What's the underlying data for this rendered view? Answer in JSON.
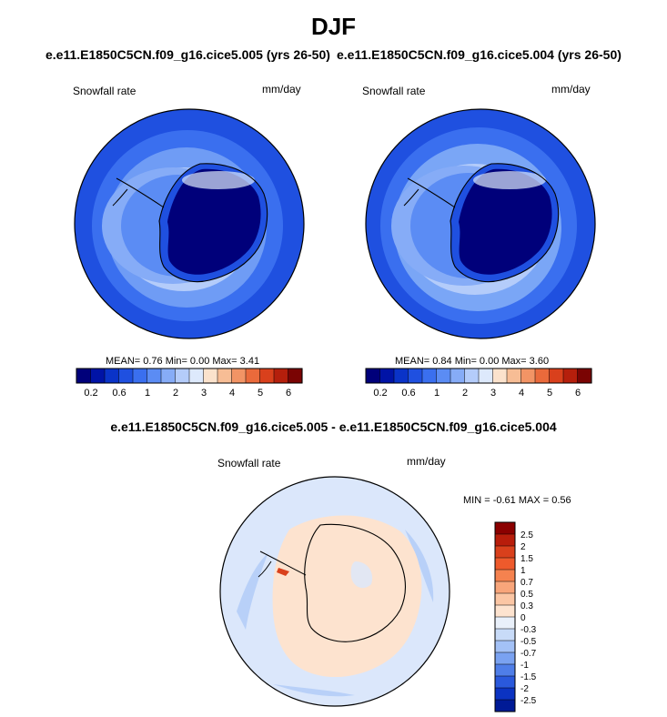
{
  "page": {
    "title": "DJF",
    "left_case_title": "e.e11.E1850C5CN.f09_g16.cice5.005 (yrs 26-50)",
    "right_case_title": "e.e11.E1850C5CN.f09_g16.cice5.004 (yrs 26-50)",
    "diff_title": "e.e11.E1850C5CN.f09_g16.cice5.005 - e.e11.E1850C5CN.f09_g16.cice5.004"
  },
  "panels": {
    "left": {
      "variable": "Snowfall rate",
      "units": "mm/day",
      "stats": "MEAN=   0.76  Min=   0.00  Max=   3.41"
    },
    "right": {
      "variable": "Snowfall rate",
      "units": "mm/day",
      "stats": "MEAN=   0.84  Min=   0.00  Max=   3.60"
    },
    "diff": {
      "variable": "Snowfall rate",
      "units": "mm/day",
      "stats": "MIN =  -0.61 MAX =   0.56"
    }
  },
  "chart_data": [
    {
      "type": "heatmap",
      "projection": "south-polar stereographic",
      "title": "e.e11.E1850C5CN.f09_g16.cice5.005 (yrs 26-50)",
      "variable": "Snowfall rate",
      "units": "mm/day",
      "mean": 0.76,
      "min": 0.0,
      "max": 3.41,
      "colorbar_levels": [
        0.2,
        0.4,
        0.6,
        0.8,
        1,
        1.5,
        2,
        2.5,
        3,
        3.5,
        4,
        4.5,
        5,
        5.5,
        6
      ],
      "colorbar_ticks": [
        "0.2",
        "0.6",
        "1",
        "2",
        "3",
        "4",
        "5",
        "6"
      ],
      "colors": [
        "#00007a",
        "#0013a6",
        "#0a33c8",
        "#1f50e0",
        "#3a6fef",
        "#5b8cf4",
        "#86acf7",
        "#b4ccfa",
        "#dde9fc",
        "#fbe2cc",
        "#f7bd95",
        "#f29465",
        "#ea6a3b",
        "#d9401c",
        "#b51f0c",
        "#7a0403"
      ]
    },
    {
      "type": "heatmap",
      "projection": "south-polar stereographic",
      "title": "e.e11.E1850C5CN.f09_g16.cice5.004 (yrs 26-50)",
      "variable": "Snowfall rate",
      "units": "mm/day",
      "mean": 0.84,
      "min": 0.0,
      "max": 3.6,
      "colorbar_levels": [
        0.2,
        0.4,
        0.6,
        0.8,
        1,
        1.5,
        2,
        2.5,
        3,
        3.5,
        4,
        4.5,
        5,
        5.5,
        6
      ],
      "colorbar_ticks": [
        "0.2",
        "0.6",
        "1",
        "2",
        "3",
        "4",
        "5",
        "6"
      ],
      "colors": [
        "#00007a",
        "#0013a6",
        "#0a33c8",
        "#1f50e0",
        "#3a6fef",
        "#5b8cf4",
        "#86acf7",
        "#b4ccfa",
        "#dde9fc",
        "#fbe2cc",
        "#f7bd95",
        "#f29465",
        "#ea6a3b",
        "#d9401c",
        "#b51f0c",
        "#7a0403"
      ]
    },
    {
      "type": "heatmap",
      "projection": "south-polar stereographic",
      "title": "e.e11.E1850C5CN.f09_g16.cice5.005 - e.e11.E1850C5CN.f09_g16.cice5.004",
      "variable": "Snowfall rate",
      "units": "mm/day",
      "min": -0.61,
      "max": 0.56,
      "colorbar_ticks": [
        "2.5",
        "2",
        "1.5",
        "1",
        "0.7",
        "0.5",
        "0.3",
        "0",
        "-0.3",
        "-0.5",
        "-0.7",
        "-1",
        "-1.5",
        "-2",
        "-2.5"
      ],
      "colors": [
        "#8b0000",
        "#b81d0b",
        "#d9401c",
        "#ee5a2c",
        "#f5824f",
        "#f8a57a",
        "#fbc6a4",
        "#fde3cf",
        "#e9f0fa",
        "#c8dbf8",
        "#a3c1f6",
        "#7aa2f1",
        "#4f7ee8",
        "#2a59dc",
        "#0b33c2",
        "#001a96"
      ]
    }
  ]
}
